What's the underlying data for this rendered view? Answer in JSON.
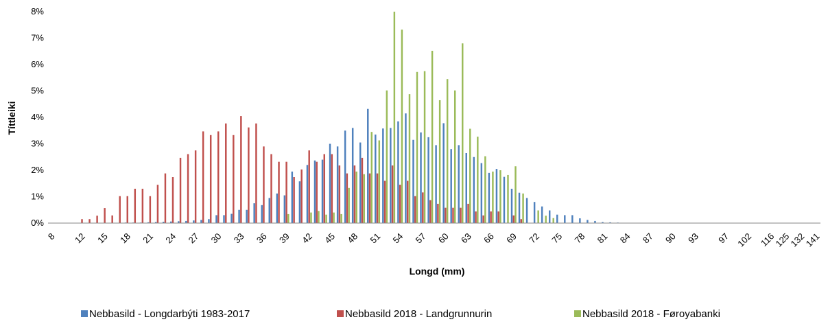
{
  "chart_data": {
    "type": "bar",
    "xlabel": "Longd (mm)",
    "ylabel": "Títtleiki",
    "ylim": [
      0,
      8
    ],
    "yticks": [
      "0%",
      "1%",
      "2%",
      "3%",
      "4%",
      "5%",
      "6%",
      "7%",
      "8%"
    ],
    "grid": false,
    "legend_position": "bottom",
    "categories": [
      8,
      9,
      10,
      11,
      12,
      13,
      14,
      15,
      16,
      17,
      18,
      19,
      20,
      21,
      22,
      23,
      24,
      25,
      26,
      27,
      28,
      29,
      30,
      31,
      32,
      33,
      34,
      35,
      36,
      37,
      38,
      39,
      40,
      41,
      42,
      43,
      44,
      45,
      46,
      47,
      48,
      49,
      50,
      51,
      52,
      53,
      54,
      55,
      56,
      57,
      58,
      59,
      60,
      61,
      62,
      63,
      64,
      65,
      66,
      67,
      68,
      69,
      70,
      71,
      72,
      73,
      74,
      75,
      76,
      77,
      78,
      79,
      80,
      81,
      82,
      83,
      84,
      85,
      86,
      87,
      88,
      89,
      90,
      91,
      92,
      93,
      94,
      95,
      96,
      97,
      98,
      100,
      102,
      104,
      110,
      116,
      118,
      125,
      128,
      132,
      136,
      141
    ],
    "xtick_labels": [
      "8",
      "12",
      "15",
      "18",
      "21",
      "24",
      "27",
      "30",
      "33",
      "36",
      "39",
      "42",
      "45",
      "48",
      "51",
      "54",
      "57",
      "60",
      "63",
      "66",
      "69",
      "72",
      "75",
      "78",
      "81",
      "84",
      "87",
      "90",
      "93",
      "97",
      "102",
      "116",
      "125",
      "132",
      "141"
    ],
    "series": [
      {
        "name": "Nebbasild - Longdarbýti 1983-2017",
        "color": "#4f81bd",
        "values": [
          0,
          0,
          0,
          0,
          0,
          0,
          0,
          0,
          0,
          0,
          0.02,
          0.02,
          0.02,
          0.03,
          0.04,
          0.05,
          0.06,
          0.07,
          0.08,
          0.1,
          0.12,
          0.15,
          0.3,
          0.3,
          0.35,
          0.5,
          0.5,
          0.75,
          0.68,
          0.95,
          1.12,
          1.05,
          1.95,
          1.58,
          2.2,
          2.37,
          2.4,
          3.0,
          2.9,
          3.5,
          3.6,
          3.05,
          4.32,
          3.35,
          3.58,
          3.6,
          3.85,
          4.15,
          3.15,
          3.43,
          3.25,
          2.95,
          3.78,
          2.8,
          2.95,
          2.65,
          2.5,
          2.27,
          1.9,
          2.05,
          1.75,
          1.3,
          1.15,
          0.95,
          0.8,
          0.63,
          0.48,
          0.32,
          0.3,
          0.3,
          0.18,
          0.12,
          0.08,
          0.04,
          0.03,
          0.02,
          0.01,
          0,
          0,
          0,
          0,
          0,
          0,
          0,
          0,
          0,
          0,
          0,
          0,
          0,
          0,
          0,
          0,
          0,
          0,
          0,
          0,
          0,
          0,
          0,
          0,
          0
        ]
      },
      {
        "name": "Nebbasild 2018 - Landgrunnurin",
        "color": "#c0504d",
        "values": [
          0,
          0,
          0,
          0,
          0.15,
          0.15,
          0.28,
          0.57,
          0.29,
          1.02,
          1.02,
          1.3,
          1.3,
          1.02,
          1.45,
          1.88,
          1.74,
          2.47,
          2.61,
          2.75,
          3.47,
          3.33,
          3.47,
          3.77,
          3.33,
          4.05,
          3.62,
          3.77,
          2.9,
          2.61,
          2.32,
          2.32,
          1.74,
          2.03,
          2.75,
          2.32,
          2.61,
          2.61,
          2.18,
          1.88,
          2.18,
          2.47,
          1.88,
          1.88,
          1.6,
          2.18,
          1.45,
          1.6,
          1.02,
          1.16,
          0.87,
          0.73,
          0.58,
          0.58,
          0.58,
          0.73,
          0.44,
          0.29,
          0.44,
          0.44,
          0,
          0.29,
          0.15,
          0,
          0,
          0,
          0,
          0,
          0,
          0,
          0,
          0,
          0,
          0,
          0,
          0,
          0,
          0,
          0,
          0,
          0,
          0,
          0,
          0,
          0,
          0,
          0,
          0,
          0,
          0,
          0,
          0,
          0,
          0,
          0,
          0,
          0,
          0,
          0,
          0,
          0,
          0
        ]
      },
      {
        "name": "Nebbasild 2018 - Føroyabanki",
        "color": "#9bbb59",
        "values": [
          0,
          0,
          0,
          0,
          0,
          0,
          0,
          0,
          0,
          0,
          0,
          0,
          0,
          0,
          0,
          0,
          0,
          0,
          0,
          0,
          0,
          0,
          0,
          0,
          0,
          0,
          0,
          0,
          0,
          0,
          0,
          0.34,
          0,
          0,
          0.4,
          0.46,
          0.32,
          0.4,
          0.34,
          1.33,
          1.95,
          1.85,
          3.45,
          3.13,
          5.02,
          8.0,
          7.32,
          4.88,
          5.72,
          5.75,
          6.52,
          4.65,
          5.45,
          5.02,
          6.8,
          3.57,
          3.27,
          2.53,
          1.95,
          2.0,
          1.82,
          2.15,
          1.12,
          0,
          0.48,
          0.28,
          0.19,
          0,
          0,
          0,
          0,
          0,
          0,
          0,
          0,
          0,
          0,
          0,
          0,
          0,
          0,
          0,
          0,
          0,
          0,
          0,
          0,
          0,
          0,
          0,
          0,
          0,
          0,
          0,
          0,
          0,
          0,
          0,
          0,
          0,
          0,
          0
        ]
      }
    ]
  }
}
